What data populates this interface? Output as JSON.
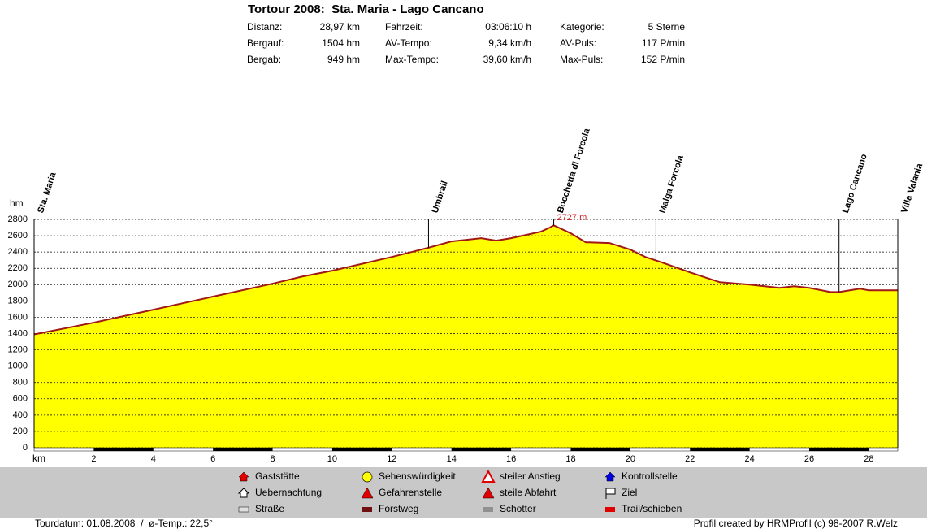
{
  "chart_data": {
    "type": "area",
    "title": "Tortour 2008:  Sta. Maria - Lago Cancano",
    "stats": [
      [
        "Distanz:",
        "28,97 km"
      ],
      [
        "Bergauf:",
        "1504 hm"
      ],
      [
        "Bergab:",
        "949 hm"
      ],
      [
        "Fahrzeit:",
        "03:06:10 h"
      ],
      [
        "AV-Tempo:",
        "9,34 km/h"
      ],
      [
        "Max-Tempo:",
        "39,60 km/h"
      ],
      [
        "Kategorie:",
        "5 Sterne"
      ],
      [
        "AV-Puls:",
        "117 P/min"
      ],
      [
        "Max-Puls:",
        "152 P/min"
      ]
    ],
    "x_label": "km",
    "y_label": "hm",
    "xlim": [
      0,
      28.97
    ],
    "xticks": [
      2,
      4,
      6,
      8,
      10,
      12,
      14,
      16,
      18,
      20,
      22,
      24,
      26,
      28
    ],
    "ylim": [
      0,
      2800
    ],
    "yticks": [
      0,
      200,
      400,
      600,
      800,
      1000,
      1200,
      1400,
      1600,
      1800,
      2000,
      2200,
      2400,
      2600,
      2800
    ],
    "grid": true,
    "x": [
      0,
      2,
      4,
      6,
      8,
      9,
      10,
      12,
      13.2,
      14,
      15,
      15.5,
      16,
      17,
      17.3,
      17.43,
      18,
      18.5,
      19.3,
      20,
      20.5,
      21,
      22,
      23,
      24,
      25,
      25.5,
      26,
      26.7,
      27,
      27.7,
      28,
      28.97
    ],
    "series": [
      {
        "color": "#ffff00",
        "line_color": "#a01818",
        "values": [
          1390,
          1534,
          1693,
          1853,
          2012,
          2100,
          2171,
          2340,
          2450,
          2530,
          2570,
          2540,
          2570,
          2650,
          2700,
          2727,
          2630,
          2520,
          2510,
          2430,
          2340,
          2280,
          2150,
          2030,
          2000,
          1960,
          1980,
          1960,
          1910,
          1910,
          1950,
          1930,
          1930
        ]
      }
    ],
    "waypoints": [
      {
        "name": "Sta. Maria",
        "km": 0
      },
      {
        "name": "Umbrail",
        "km": 13.23
      },
      {
        "name": "Bocchetta di Forcola",
        "km": 17.43
      },
      {
        "name": "Malga Forcola",
        "km": 20.86
      },
      {
        "name": "Lago Cancano",
        "km": 27.0
      },
      {
        "name": "Villa Valania",
        "km": 28.97
      }
    ],
    "max_label": {
      "km": 17.43,
      "value": 2727,
      "label": "2727 m"
    },
    "legend": [
      "Gaststätte",
      "Uebernachtung",
      "Straße",
      "Sehenswürdigkeit",
      "Gefahrenstelle",
      "Forstweg",
      "steiler Anstieg",
      "steile Abfahrt",
      "Schotter",
      "Kontrollstelle",
      "Ziel",
      "Trail/schieben"
    ],
    "footer_left": "Tourdatum: 01.08.2008  /  ø-Temp.: 22,5°",
    "footer_right": "Profil created by HRMProfil (c) 98-2007 R.Welz"
  }
}
